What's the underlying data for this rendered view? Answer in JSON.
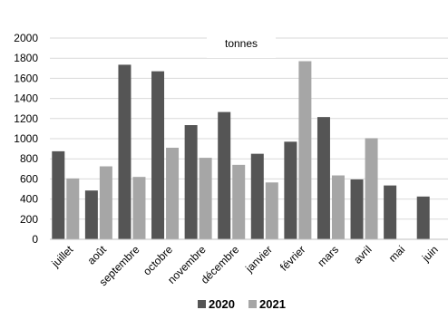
{
  "chart_data": {
    "type": "bar",
    "unit_label": "tonnes",
    "categories": [
      "juillet",
      "août",
      "septembre",
      "octobre",
      "novembre",
      "décembre",
      "janvier",
      "février",
      "mars",
      "avril",
      "mai",
      "juin"
    ],
    "series": [
      {
        "name": "2020",
        "color": "#555555",
        "values": [
          875,
          485,
          1735,
          1670,
          1135,
          1265,
          850,
          970,
          1215,
          595,
          535,
          425
        ]
      },
      {
        "name": "2021",
        "color": "#a6a6a6",
        "values": [
          605,
          725,
          620,
          910,
          810,
          740,
          565,
          1770,
          635,
          1005,
          null,
          null
        ]
      }
    ],
    "yticks": [
      0,
      200,
      400,
      600,
      800,
      1000,
      1200,
      1400,
      1600,
      1800,
      2000
    ],
    "ylim": [
      0,
      2000
    ],
    "grid": true,
    "legend_position": "bottom"
  }
}
